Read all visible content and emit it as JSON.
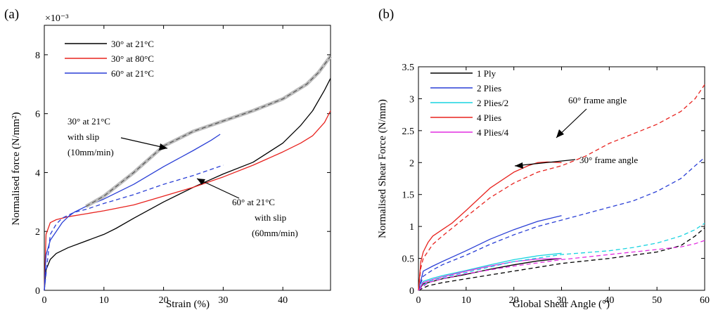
{
  "chart_data": [
    {
      "panel_label": "(a)",
      "type": "line",
      "xlabel": "Strain (%)",
      "ylabel": "Normalised force (N/mm²)",
      "y_multiplier_label": "×10⁻³",
      "xlim": [
        0,
        48
      ],
      "ylim": [
        0,
        9
      ],
      "xticks": [
        0,
        10,
        20,
        30,
        40
      ],
      "yticks": [
        0,
        2,
        4,
        6,
        8
      ],
      "legend_position": "top-left",
      "legend": [
        {
          "label": "30° at 21°C",
          "color": "#000000"
        },
        {
          "label": "30° at 80°C",
          "color": "#e8231f"
        },
        {
          "label": "60° at 21°C",
          "color": "#2a3fd6"
        }
      ],
      "series": [
        {
          "name": "30° at 21°C",
          "color": "#000000",
          "style": "solid",
          "x": [
            0,
            0.3,
            1,
            2,
            4,
            6,
            8,
            10,
            12,
            15,
            20,
            25,
            30,
            35,
            40,
            43,
            45,
            47,
            48
          ],
          "y": [
            0,
            0.7,
            1.05,
            1.25,
            1.45,
            1.6,
            1.75,
            1.9,
            2.1,
            2.45,
            3.0,
            3.5,
            3.95,
            4.35,
            5.0,
            5.6,
            6.1,
            6.8,
            7.2
          ]
        },
        {
          "name": "30° at 80°C",
          "color": "#e8231f",
          "style": "solid",
          "x": [
            0,
            0.3,
            1,
            2,
            4,
            7,
            10,
            15,
            20,
            25,
            30,
            35,
            40,
            43,
            45,
            47,
            48
          ],
          "y": [
            0,
            1.9,
            2.3,
            2.4,
            2.5,
            2.6,
            2.7,
            2.9,
            3.2,
            3.5,
            3.85,
            4.25,
            4.7,
            5.0,
            5.25,
            5.7,
            6.1
          ]
        },
        {
          "name": "60° at 21°C",
          "color": "#2a3fd6",
          "style": "solid",
          "x": [
            0,
            0.3,
            1,
            2,
            3,
            4,
            5,
            7,
            10,
            15,
            20,
            25,
            28,
            29.5
          ],
          "y": [
            0,
            1.2,
            1.7,
            2.0,
            2.3,
            2.5,
            2.65,
            2.85,
            3.1,
            3.6,
            4.2,
            4.75,
            5.1,
            5.3
          ]
        },
        {
          "name": "30° at 21°C with slip (10mm/min)",
          "color": "#888888",
          "style": "dashed-band",
          "x": [
            7,
            10,
            15,
            20,
            25,
            30,
            35,
            40,
            44,
            46,
            48
          ],
          "y": [
            2.85,
            3.2,
            4.0,
            4.9,
            5.4,
            5.75,
            6.1,
            6.5,
            7.0,
            7.4,
            7.95
          ]
        },
        {
          "name": "60° at 21°C with slip (60mm/min)",
          "color": "#2a3fd6",
          "style": "dashed",
          "x": [
            0,
            1,
            2,
            3,
            5,
            7,
            10,
            15,
            20,
            25,
            30
          ],
          "y": [
            0,
            1.9,
            2.25,
            2.45,
            2.65,
            2.75,
            2.95,
            3.25,
            3.6,
            3.9,
            4.25
          ]
        }
      ],
      "annotations": [
        {
          "lines": [
            "30° at 21°C",
            "with slip",
            "(10mm/min)"
          ]
        },
        {
          "lines": [
            "60° at 21°C",
            "with slip",
            "(60mm/min)"
          ]
        }
      ]
    },
    {
      "panel_label": "(b)",
      "type": "line",
      "xlabel": "Global Shear Angle (°)",
      "ylabel": "Normalised Shear Force (N/mm)",
      "xlim": [
        0,
        60
      ],
      "ylim": [
        0,
        3.5
      ],
      "xticks": [
        0,
        10,
        20,
        30,
        40,
        50,
        60
      ],
      "yticks": [
        0,
        0.5,
        1,
        1.5,
        2,
        2.5,
        3,
        3.5
      ],
      "ytick_labels": [
        "0",
        "0.5",
        "1",
        "1.5",
        "2",
        "2.5",
        "3",
        "3.5"
      ],
      "legend_position": "top-left",
      "legend": [
        {
          "label": "1 Ply",
          "color": "#000000"
        },
        {
          "label": "2 Plies",
          "color": "#2a3fd6"
        },
        {
          "label": "2 Plies/2",
          "color": "#19d3e0"
        },
        {
          "label": "4 Plies",
          "color": "#e8231f"
        },
        {
          "label": "4 Plies/4",
          "color": "#e22fe0"
        }
      ],
      "series": [
        {
          "name": "1 Ply",
          "color": "#000000",
          "style": "solid",
          "x": [
            0,
            1,
            3,
            5,
            10,
            15,
            20,
            25,
            30
          ],
          "y": [
            0,
            0.1,
            0.14,
            0.18,
            0.25,
            0.33,
            0.4,
            0.46,
            0.5
          ]
        },
        {
          "name": "2 Plies",
          "color": "#2a3fd6",
          "style": "solid",
          "x": [
            0,
            1,
            3,
            5,
            10,
            15,
            20,
            25,
            30
          ],
          "y": [
            0,
            0.3,
            0.38,
            0.45,
            0.62,
            0.8,
            0.95,
            1.08,
            1.17
          ]
        },
        {
          "name": "2 Plies/2",
          "color": "#19d3e0",
          "style": "solid",
          "x": [
            0,
            1,
            3,
            5,
            10,
            15,
            20,
            25,
            30
          ],
          "y": [
            0,
            0.14,
            0.19,
            0.23,
            0.31,
            0.4,
            0.48,
            0.54,
            0.58
          ]
        },
        {
          "name": "4 Plies",
          "color": "#e8231f",
          "style": "solid",
          "x": [
            0,
            0.5,
            1,
            2,
            3,
            5,
            7,
            10,
            15,
            20,
            23,
            25,
            27,
            30
          ],
          "y": [
            0,
            0.45,
            0.6,
            0.75,
            0.85,
            0.95,
            1.05,
            1.25,
            1.6,
            1.85,
            1.95,
            2.0,
            2.01,
            2.0
          ]
        },
        {
          "name": "4 Plies/4",
          "color": "#e22fe0",
          "style": "solid",
          "x": [
            0,
            1,
            3,
            5,
            10,
            15,
            20,
            25,
            30
          ],
          "y": [
            0,
            0.12,
            0.17,
            0.21,
            0.3,
            0.38,
            0.45,
            0.49,
            0.5
          ]
        },
        {
          "name": "1 Ply (30° frame)",
          "color": "#000000",
          "style": "dashed",
          "x": [
            0,
            2,
            5,
            10,
            20,
            30,
            40,
            45,
            50,
            55,
            58,
            60
          ],
          "y": [
            0,
            0.07,
            0.12,
            0.18,
            0.3,
            0.42,
            0.5,
            0.55,
            0.6,
            0.7,
            0.85,
            0.98
          ]
        },
        {
          "name": "2 Plies (30° frame)",
          "color": "#2a3fd6",
          "style": "dashed",
          "x": [
            0,
            1,
            3,
            5,
            10,
            15,
            20,
            25,
            30,
            35,
            40,
            45,
            50,
            55,
            58,
            60
          ],
          "y": [
            0,
            0.22,
            0.32,
            0.4,
            0.55,
            0.72,
            0.87,
            1.0,
            1.1,
            1.2,
            1.3,
            1.4,
            1.55,
            1.75,
            1.95,
            2.08
          ]
        },
        {
          "name": "2 Plies/2 (30° frame)",
          "color": "#19d3e0",
          "style": "dashed",
          "x": [
            0,
            2,
            5,
            10,
            20,
            30,
            40,
            45,
            50,
            55,
            58,
            60
          ],
          "y": [
            0,
            0.14,
            0.2,
            0.28,
            0.45,
            0.56,
            0.62,
            0.67,
            0.74,
            0.85,
            0.95,
            1.05
          ]
        },
        {
          "name": "4 Plies (30° frame)",
          "color": "#e8231f",
          "style": "dashed",
          "x": [
            0,
            0.5,
            1,
            3,
            5,
            10,
            15,
            20,
            25,
            30,
            35,
            40,
            45,
            50,
            55,
            58,
            60
          ],
          "y": [
            0,
            0.35,
            0.5,
            0.72,
            0.85,
            1.15,
            1.45,
            1.68,
            1.85,
            1.95,
            2.1,
            2.3,
            2.45,
            2.6,
            2.8,
            3.0,
            3.22
          ]
        },
        {
          "name": "4 Plies/4 (30° frame)",
          "color": "#e22fe0",
          "style": "dashed",
          "x": [
            0,
            2,
            5,
            10,
            20,
            30,
            40,
            45,
            50,
            55,
            58,
            60
          ],
          "y": [
            0,
            0.12,
            0.18,
            0.26,
            0.38,
            0.48,
            0.56,
            0.6,
            0.64,
            0.68,
            0.73,
            0.78
          ]
        }
      ],
      "annotations": [
        {
          "lines": [
            "60° frame angle"
          ]
        },
        {
          "lines": [
            "30° frame angle"
          ]
        }
      ]
    }
  ]
}
